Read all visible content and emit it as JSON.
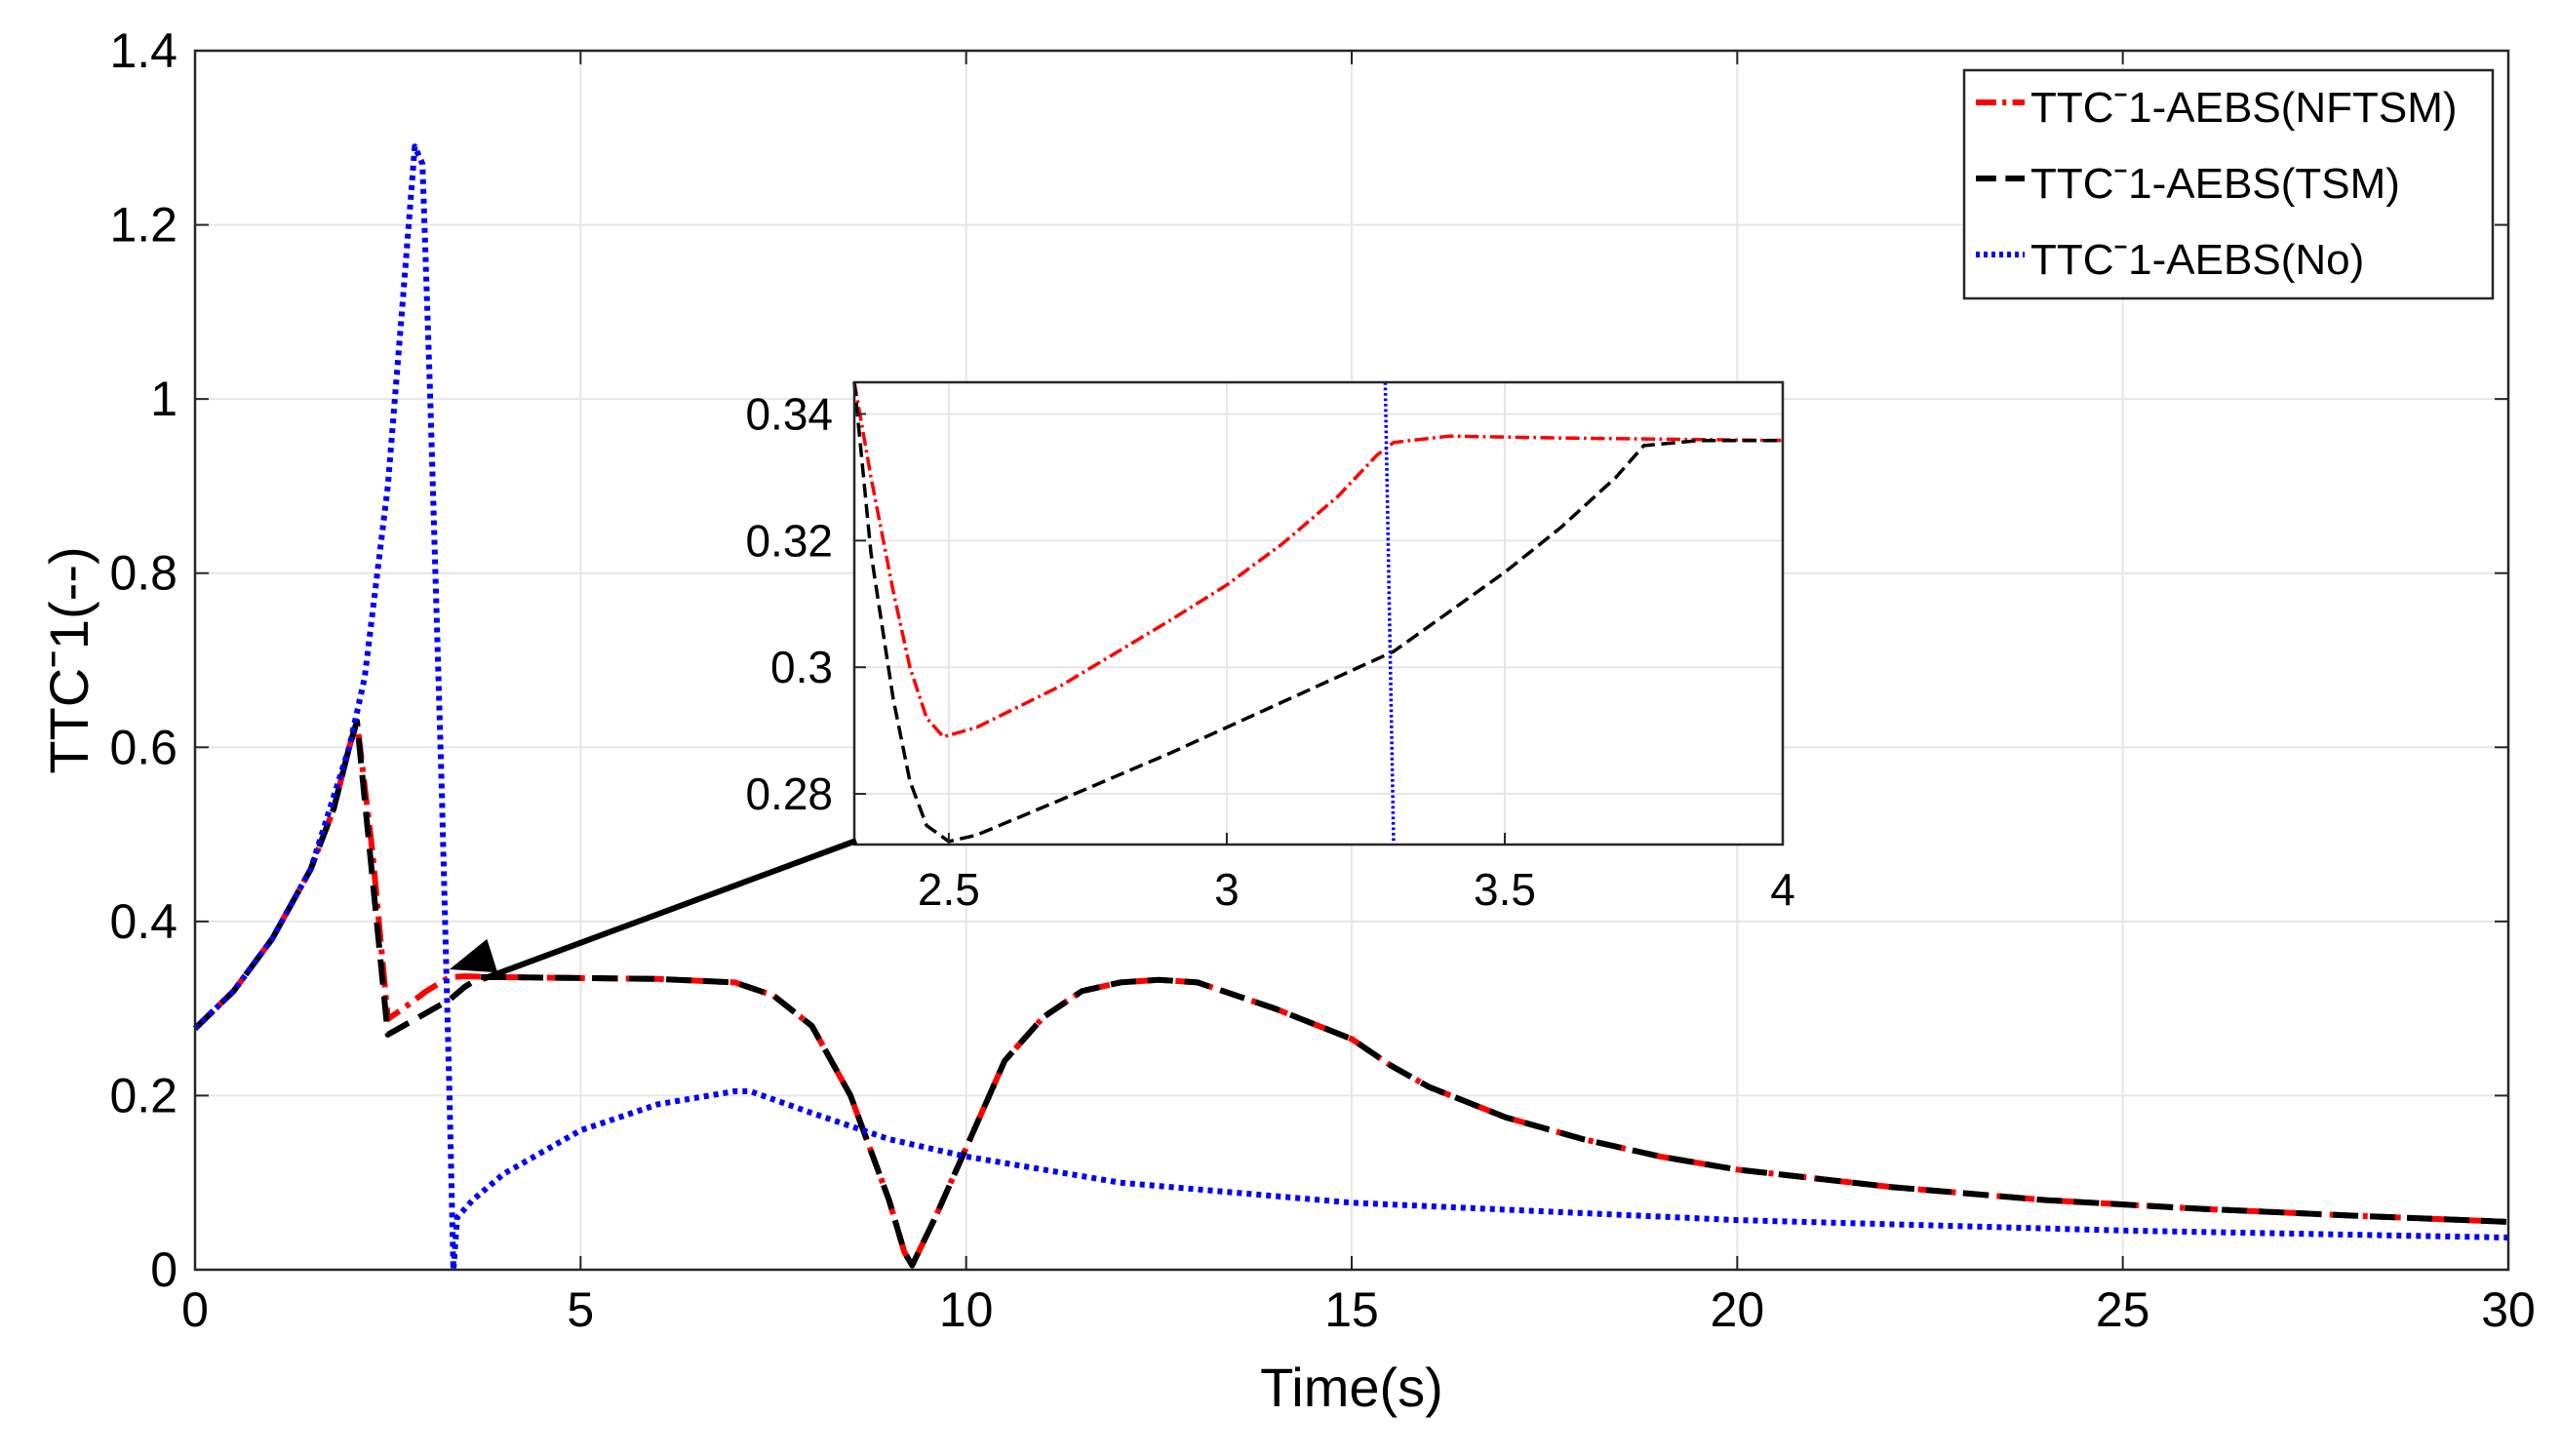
{
  "chart_data": {
    "type": "line",
    "title": "",
    "xlabel": "Time(s)",
    "ylabel": "TTCˉ1(--)",
    "xlim": [
      0,
      30
    ],
    "ylim": [
      0,
      1.4
    ],
    "xticks": [
      0,
      5,
      10,
      15,
      20,
      25,
      30
    ],
    "xtick_labels": [
      "0",
      "5",
      "10",
      "15",
      "20",
      "25",
      "30"
    ],
    "yticks": [
      0,
      0.2,
      0.4,
      0.6,
      0.8,
      1,
      1.2,
      1.4
    ],
    "ytick_labels": [
      "0",
      "0.2",
      "0.4",
      "0.6",
      "0.8",
      "1",
      "1.2",
      "1.4"
    ],
    "grid": true,
    "legend_position": "top-right",
    "series": [
      {
        "name": "TTCˉ1-AEBS(NFTSM)",
        "color": "#ff0000",
        "style": "dash-dot",
        "x": [
          0,
          0.5,
          1.0,
          1.5,
          1.8,
          2.0,
          2.1,
          2.3,
          2.5,
          2.7,
          3.0,
          3.3,
          3.5,
          4,
          5,
          6,
          7,
          7.5,
          8,
          8.5,
          9.0,
          9.2,
          9.3,
          9.6,
          10,
          10.5,
          11,
          11.5,
          12,
          12.5,
          13,
          14,
          15,
          15.5,
          16,
          17,
          18,
          19,
          20,
          22,
          24,
          26,
          28,
          30
        ],
        "y": [
          0.277,
          0.32,
          0.38,
          0.46,
          0.53,
          0.6,
          0.63,
          0.48,
          0.288,
          0.3,
          0.32,
          0.336,
          0.337,
          0.336,
          0.335,
          0.334,
          0.33,
          0.315,
          0.28,
          0.2,
          0.08,
          0.02,
          0.005,
          0.06,
          0.14,
          0.24,
          0.29,
          0.32,
          0.33,
          0.333,
          0.33,
          0.3,
          0.265,
          0.235,
          0.21,
          0.175,
          0.15,
          0.13,
          0.115,
          0.095,
          0.08,
          0.07,
          0.062,
          0.055
        ]
      },
      {
        "name": "TTCˉ1-AEBS(TSM)",
        "color": "#000000",
        "style": "dashed",
        "x": [
          0,
          0.5,
          1.0,
          1.5,
          1.8,
          2.0,
          2.1,
          2.3,
          2.5,
          2.7,
          3.0,
          3.3,
          3.5,
          3.7,
          4,
          5,
          6,
          7,
          7.5,
          8,
          8.5,
          9.0,
          9.2,
          9.3,
          9.6,
          10,
          10.5,
          11,
          11.5,
          12,
          12.5,
          13,
          14,
          15,
          15.5,
          16,
          17,
          18,
          19,
          20,
          22,
          24,
          26,
          28,
          30
        ],
        "y": [
          0.277,
          0.32,
          0.38,
          0.46,
          0.53,
          0.6,
          0.63,
          0.45,
          0.27,
          0.28,
          0.295,
          0.31,
          0.325,
          0.336,
          0.336,
          0.335,
          0.334,
          0.33,
          0.315,
          0.28,
          0.2,
          0.08,
          0.02,
          0.005,
          0.06,
          0.14,
          0.24,
          0.29,
          0.32,
          0.33,
          0.333,
          0.33,
          0.3,
          0.265,
          0.235,
          0.21,
          0.175,
          0.15,
          0.13,
          0.115,
          0.095,
          0.08,
          0.07,
          0.062,
          0.055
        ]
      },
      {
        "name": "TTCˉ1-AEBS(No)",
        "color": "#0000ff",
        "style": "dotted",
        "x": [
          0,
          0.5,
          1.0,
          1.5,
          2.0,
          2.2,
          2.5,
          2.7,
          2.85,
          2.95,
          3.05,
          3.2,
          3.3,
          3.35,
          3.4,
          3.6,
          4,
          5,
          6,
          7,
          7.2,
          8,
          9,
          10,
          12,
          15,
          20,
          25,
          30
        ],
        "y": [
          0.277,
          0.32,
          0.38,
          0.46,
          0.6,
          0.68,
          0.9,
          1.12,
          1.29,
          1.27,
          1.0,
          0.55,
          0.2,
          0.0,
          0.06,
          0.08,
          0.11,
          0.16,
          0.19,
          0.205,
          0.205,
          0.18,
          0.15,
          0.13,
          0.1,
          0.077,
          0.057,
          0.045,
          0.037
        ]
      }
    ],
    "inset": {
      "xlim": [
        2.33,
        4
      ],
      "ylim": [
        0.272,
        0.345
      ],
      "xticks": [
        2.5,
        3,
        3.5,
        4
      ],
      "xtick_labels": [
        "2.5",
        "3",
        "3.5",
        "4"
      ],
      "yticks": [
        0.28,
        0.3,
        0.32,
        0.34
      ],
      "ytick_labels": [
        "0.28",
        "0.3",
        "0.32",
        "0.34"
      ],
      "series": [
        {
          "name": "TTCˉ1-AEBS(NFTSM)",
          "x": [
            2.33,
            2.36,
            2.4,
            2.43,
            2.46,
            2.49,
            2.55,
            2.7,
            2.9,
            3.0,
            3.1,
            3.2,
            3.27,
            3.3,
            3.4,
            3.6,
            3.8,
            4.0
          ],
          "y": [
            0.345,
            0.33,
            0.312,
            0.3,
            0.292,
            0.289,
            0.2905,
            0.297,
            0.3075,
            0.313,
            0.3195,
            0.327,
            0.3335,
            0.3355,
            0.3365,
            0.3362,
            0.336,
            0.3358
          ]
        },
        {
          "name": "TTCˉ1-AEBS(TSM)",
          "x": [
            2.33,
            2.36,
            2.4,
            2.43,
            2.46,
            2.5,
            2.55,
            2.7,
            2.9,
            3.1,
            3.3,
            3.5,
            3.6,
            3.7,
            3.75,
            3.85,
            4.0
          ],
          "y": [
            0.345,
            0.318,
            0.295,
            0.282,
            0.275,
            0.2725,
            0.2735,
            0.279,
            0.2865,
            0.2945,
            0.3025,
            0.315,
            0.322,
            0.33,
            0.335,
            0.3358,
            0.3358
          ]
        },
        {
          "name": "TTCˉ1-AEBS(No)",
          "x": [
            3.285,
            3.3
          ],
          "y": [
            0.345,
            0.272
          ]
        }
      ]
    }
  }
}
